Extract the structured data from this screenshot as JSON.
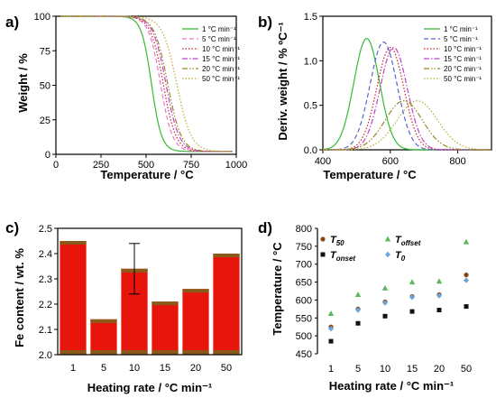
{
  "chart_data": [
    {
      "panel": "a)",
      "type": "line",
      "xlabel": "Temperature / °C",
      "ylabel": "Weight / %",
      "xlim": [
        0,
        1000
      ],
      "ylim": [
        0,
        100
      ],
      "xticks": [
        "0",
        "250",
        "500",
        "750",
        "1000"
      ],
      "yticks": [
        "0",
        "25",
        "50",
        "75",
        "100"
      ],
      "legend_position": "top-right",
      "series": [
        {
          "name": "1 °C min⁻¹",
          "color": "#33bb33",
          "dash": "solid",
          "midpoint": 530,
          "width": 28,
          "residual": 2
        },
        {
          "name": "5 °C min⁻¹",
          "color": "#ee77cc",
          "dash": "dashed",
          "midpoint": 580,
          "width": 33,
          "residual": 2
        },
        {
          "name": "10 °C min⁻¹",
          "color": "#cc2222",
          "dash": "dotted",
          "midpoint": 595,
          "width": 35,
          "residual": 2
        },
        {
          "name": "15 °C min⁻¹",
          "color": "#bb44cc",
          "dash": "dashdot",
          "midpoint": 610,
          "width": 36,
          "residual": 2
        },
        {
          "name": "20 °C min⁻¹",
          "color": "#998822",
          "dash": "dashdotdot",
          "midpoint": 620,
          "width": 37,
          "residual": 2
        },
        {
          "name": "50 °C min⁻¹",
          "color": "#bbaa33",
          "dash": "dotted",
          "midpoint": 670,
          "width": 40,
          "residual": 2
        }
      ]
    },
    {
      "panel": "b)",
      "type": "line",
      "xlabel": "Temperature / °C",
      "ylabel": "Deriv. weight / % ºC⁻¹",
      "xlim": [
        400,
        900
      ],
      "ylim": [
        0,
        1.5
      ],
      "xticks": [
        "400",
        "600",
        "800"
      ],
      "yticks": [
        "0.0",
        "0.5",
        "1.0",
        "1.5"
      ],
      "legend_position": "top-right",
      "series": [
        {
          "name": "1 °C min⁻¹",
          "color": "#33bb33",
          "dash": "solid",
          "peak_x": 530,
          "peak_y": 1.25,
          "sigma": 38
        },
        {
          "name": "5 °C min⁻¹",
          "color": "#5566cc",
          "dash": "dashed",
          "peak_x": 580,
          "peak_y": 1.21,
          "sigma": 40
        },
        {
          "name": "10 °C min⁻¹",
          "color": "#cc2222",
          "dash": "dotted",
          "peak_x": 600,
          "peak_y": 1.15,
          "sigma": 40
        },
        {
          "name": "15 °C min⁻¹",
          "color": "#bb44cc",
          "dash": "dashdot",
          "peak_x": 610,
          "peak_y": 1.15,
          "sigma": 40
        },
        {
          "name": "20 °C min⁻¹",
          "color": "#998822",
          "dash": "dashdotdot",
          "peak_x": 640,
          "peak_y": 0.55,
          "sigma": 55
        },
        {
          "name": "50 °C min⁻¹",
          "color": "#bbaa33",
          "dash": "dotted",
          "peak_x": 680,
          "peak_y": 0.55,
          "sigma": 60
        }
      ]
    },
    {
      "panel": "c)",
      "type": "bar",
      "xlabel": "Heating rate / °C min⁻¹",
      "ylabel": "Fe content / wt. %",
      "ylim": [
        2.0,
        2.5
      ],
      "yticks": [
        "2.0",
        "2.1",
        "2.2",
        "2.3",
        "2.4",
        "2.5"
      ],
      "categories": [
        "1",
        "5",
        "10",
        "15",
        "20",
        "50"
      ],
      "values": [
        2.45,
        2.14,
        2.34,
        2.21,
        2.26,
        2.4
      ],
      "error_bar": {
        "category": "10",
        "low": 2.24,
        "high": 2.44
      },
      "bar_color": "#e8150c",
      "band_color": "#8a5a1a"
    },
    {
      "panel": "d)",
      "type": "scatter",
      "xlabel": "Heating rate / °C min⁻¹",
      "ylabel": "Temperature / °C",
      "ylim": [
        450,
        800
      ],
      "yticks": [
        "450",
        "500",
        "550",
        "600",
        "650",
        "700",
        "750",
        "800"
      ],
      "categories": [
        "1",
        "5",
        "10",
        "15",
        "20",
        "50"
      ],
      "legend_position": "top-left",
      "series": [
        {
          "name": "T",
          "sub": "50",
          "color": "#8b4513",
          "marker": "circle",
          "values": [
            525,
            575,
            595,
            610,
            615,
            670
          ]
        },
        {
          "name": "T",
          "sub": "onset",
          "color": "#111111",
          "marker": "square",
          "values": [
            485,
            535,
            555,
            568,
            572,
            582
          ]
        },
        {
          "name": "T",
          "sub": "offset",
          "color": "#5cb85c",
          "marker": "triangle",
          "values": [
            562,
            615,
            633,
            650,
            652,
            762
          ]
        },
        {
          "name": "T",
          "sub": "0",
          "color": "#6aa6e0",
          "marker": "diamond",
          "values": [
            520,
            572,
            592,
            608,
            612,
            655
          ]
        }
      ]
    }
  ]
}
